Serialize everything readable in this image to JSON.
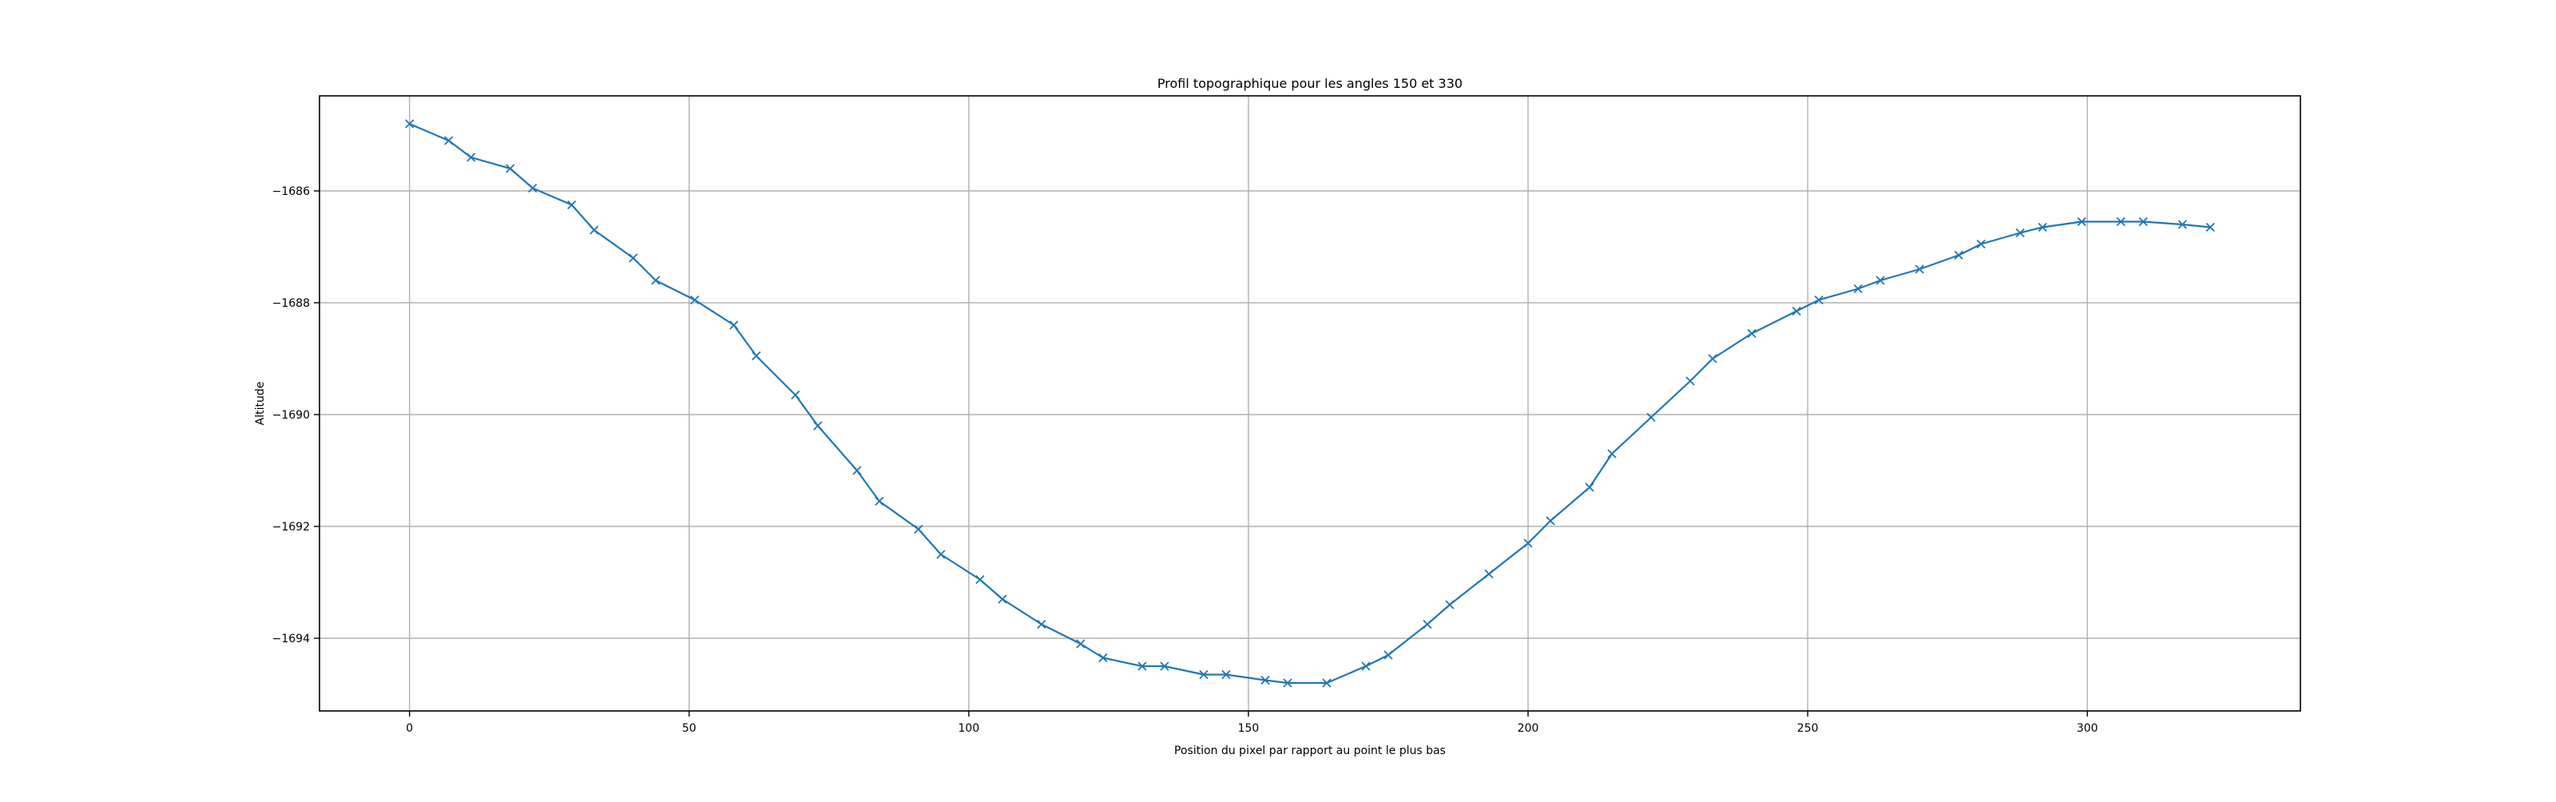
{
  "chart_data": {
    "type": "line",
    "title": "Profil topographique pour les angles 150 et 330",
    "xlabel": "Position du pixel par rapport au point le plus bas",
    "ylabel": "Altitude",
    "xlim": [
      -16.1,
      338.1
    ],
    "ylim": [
      -1695.3,
      -1684.3
    ],
    "xticks": [
      0,
      50,
      100,
      150,
      200,
      250,
      300
    ],
    "xtick_labels": [
      "0",
      "50",
      "100",
      "150",
      "200",
      "250",
      "300"
    ],
    "yticks": [
      -1686,
      -1688,
      -1690,
      -1692,
      -1694
    ],
    "ytick_labels": [
      "−1686",
      "−1688",
      "−1690",
      "−1692",
      "−1694"
    ],
    "grid": true,
    "marker": "x",
    "color": "#1f77b4",
    "series": [
      {
        "x": [
          0,
          7,
          11,
          18,
          22,
          29,
          33,
          40,
          44,
          51,
          58,
          62,
          69,
          73,
          80,
          84,
          91,
          95,
          102,
          106,
          113,
          120,
          124,
          131,
          135,
          142,
          146,
          153,
          157,
          164,
          171,
          175,
          182,
          186,
          193,
          200,
          204,
          211,
          215,
          222,
          229,
          233,
          240,
          248,
          252,
          259,
          263,
          270,
          277,
          281,
          288,
          292,
          299,
          306,
          310,
          317,
          322
        ],
        "y": [
          -1684.8,
          -1685.1,
          -1685.4,
          -1685.6,
          -1685.95,
          -1686.25,
          -1686.7,
          -1687.2,
          -1687.6,
          -1687.95,
          -1688.4,
          -1688.95,
          -1689.65,
          -1690.2,
          -1691.0,
          -1691.55,
          -1692.05,
          -1692.5,
          -1692.95,
          -1693.3,
          -1693.75,
          -1694.1,
          -1694.35,
          -1694.5,
          -1694.5,
          -1694.65,
          -1694.65,
          -1694.75,
          -1694.8,
          -1694.8,
          -1694.5,
          -1694.3,
          -1693.75,
          -1693.4,
          -1692.85,
          -1692.3,
          -1691.9,
          -1691.3,
          -1690.7,
          -1690.05,
          -1689.4,
          -1689.0,
          -1688.55,
          -1688.15,
          -1687.95,
          -1687.75,
          -1687.6,
          -1687.4,
          -1687.15,
          -1686.95,
          -1686.75,
          -1686.65,
          -1686.55,
          -1686.55,
          -1686.55,
          -1686.6,
          -1686.65
        ]
      }
    ]
  }
}
